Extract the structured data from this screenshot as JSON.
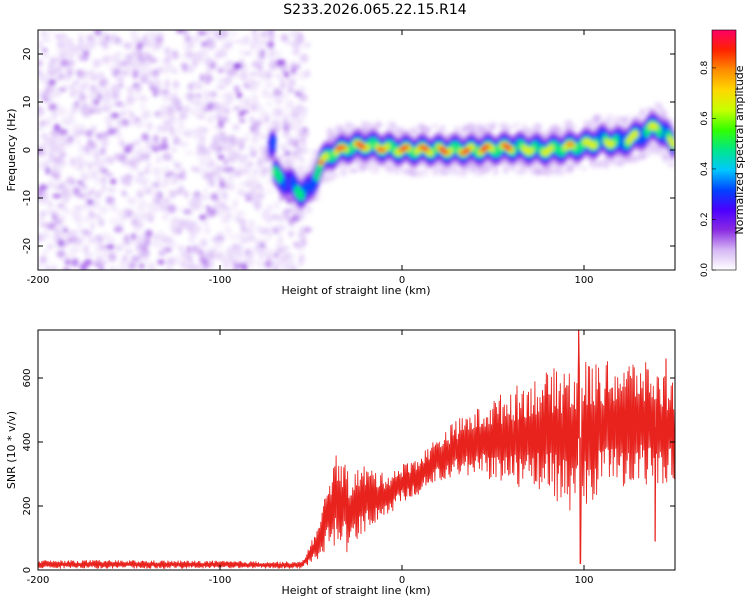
{
  "title": "S233.2026.065.22.15.R14",
  "chart_data": [
    {
      "type": "heatmap",
      "xlabel": "Height of straight line (km)",
      "ylabel": "Frequency (Hz)",
      "xlim": [
        -200,
        150
      ],
      "ylim": [
        -25,
        25
      ],
      "xticks": [
        -200,
        -100,
        0,
        100
      ],
      "yticks": [
        -20,
        -10,
        0,
        10,
        20
      ],
      "colorbar": {
        "label": "Normalized spectral amplitude",
        "range": [
          0,
          0.95
        ],
        "ticks": [
          0,
          0.2,
          0.4,
          0.6,
          0.8
        ],
        "colormap": [
          "#ffffff",
          "#d6b8f5",
          "#8a2be2",
          "#4b00ff",
          "#0044ff",
          "#00c8ff",
          "#00e68a",
          "#33ff00",
          "#c8ff00",
          "#ffd700",
          "#ff8c00",
          "#ff2200",
          "#ff0066"
        ]
      },
      "ridge": [
        {
          "x": -70,
          "y": -5
        },
        {
          "x": -60,
          "y": -7.5
        },
        {
          "x": -55,
          "y": -9
        },
        {
          "x": -50,
          "y": -8
        },
        {
          "x": -45,
          "y": -3
        },
        {
          "x": -40,
          "y": -1
        },
        {
          "x": -30,
          "y": 0.5
        },
        {
          "x": -20,
          "y": 1
        },
        {
          "x": -10,
          "y": 0.5
        },
        {
          "x": 0,
          "y": 0
        },
        {
          "x": 20,
          "y": 0
        },
        {
          "x": 40,
          "y": 0
        },
        {
          "x": 60,
          "y": 0.5
        },
        {
          "x": 80,
          "y": 0
        },
        {
          "x": 100,
          "y": 1
        },
        {
          "x": 110,
          "y": 2
        },
        {
          "x": 120,
          "y": 1.5
        },
        {
          "x": 130,
          "y": 3
        },
        {
          "x": 140,
          "y": 5
        },
        {
          "x": 150,
          "y": 1
        }
      ]
    },
    {
      "type": "line",
      "xlabel": "Height of straight line (km)",
      "ylabel": "SNR (10 * v/v)",
      "xlim": [
        -200,
        150
      ],
      "ylim": [
        0,
        750
      ],
      "xticks": [
        -200,
        -100,
        0,
        100
      ],
      "yticks": [
        0,
        200,
        400,
        600
      ],
      "series": [
        {
          "color": "#e8231e",
          "envelope": [
            {
              "x": -200,
              "lo": 5,
              "hi": 30
            },
            {
              "x": -150,
              "lo": 5,
              "hi": 30
            },
            {
              "x": -100,
              "lo": 5,
              "hi": 28
            },
            {
              "x": -55,
              "lo": 5,
              "hi": 25
            },
            {
              "x": -45,
              "lo": 40,
              "hi": 150
            },
            {
              "x": -40,
              "lo": 60,
              "hi": 310
            },
            {
              "x": -35,
              "lo": 80,
              "hi": 380
            },
            {
              "x": -30,
              "lo": 50,
              "hi": 310
            },
            {
              "x": -20,
              "lo": 120,
              "hi": 330
            },
            {
              "x": -10,
              "lo": 160,
              "hi": 300
            },
            {
              "x": 0,
              "lo": 210,
              "hi": 330
            },
            {
              "x": 10,
              "lo": 240,
              "hi": 360
            },
            {
              "x": 20,
              "lo": 280,
              "hi": 420
            },
            {
              "x": 30,
              "lo": 290,
              "hi": 470
            },
            {
              "x": 40,
              "lo": 300,
              "hi": 500
            },
            {
              "x": 60,
              "lo": 260,
              "hi": 570
            },
            {
              "x": 80,
              "lo": 250,
              "hi": 620
            },
            {
              "x": 95,
              "lo": 150,
              "hi": 660
            },
            {
              "x": 110,
              "lo": 250,
              "hi": 650
            },
            {
              "x": 130,
              "lo": 260,
              "hi": 660
            },
            {
              "x": 150,
              "lo": 260,
              "hi": 600
            }
          ],
          "spikes": [
            {
              "x": 97,
              "y": 750
            },
            {
              "x": 98,
              "y": 20
            },
            {
              "x": 145,
              "y": 660
            },
            {
              "x": 139,
              "y": 90
            }
          ]
        }
      ]
    }
  ]
}
